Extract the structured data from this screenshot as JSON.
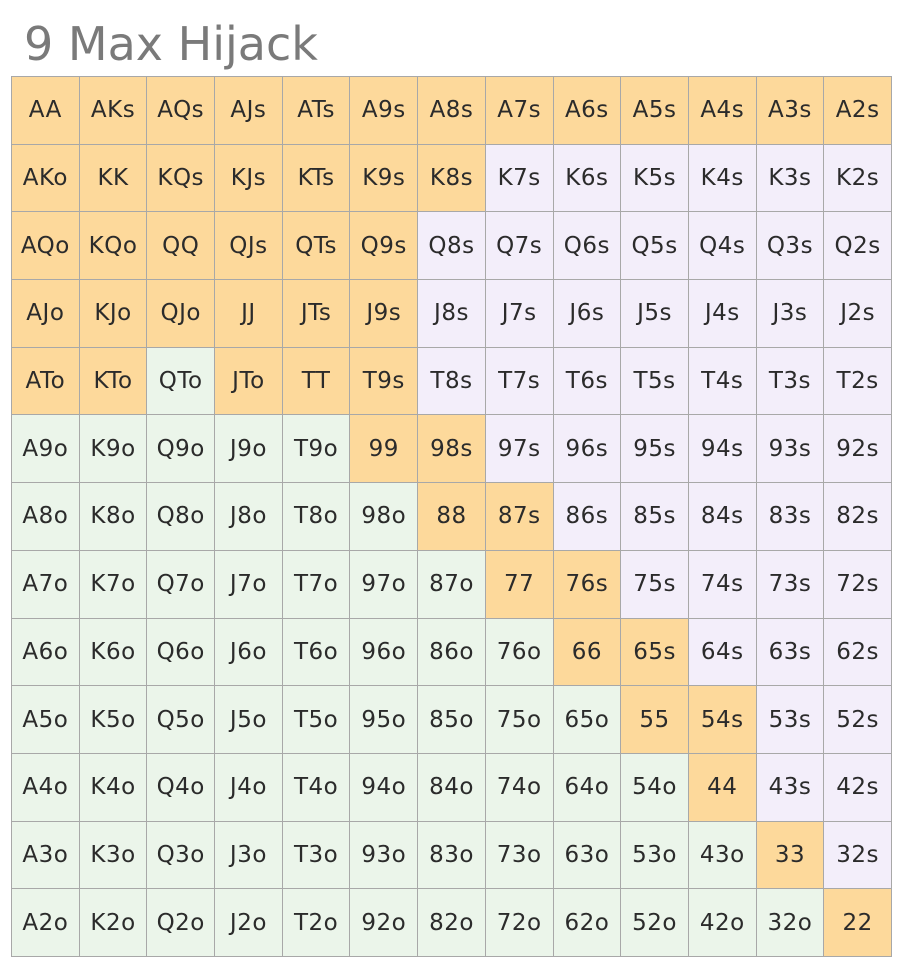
{
  "title": "9 Max Hijack",
  "colors": {
    "open": "#fdd99b",
    "suited_fold": "#f3eefa",
    "offsuit_fold": "#ebf5ea",
    "grid_line": "#a8a8a8",
    "title_text": "#7a7a7a"
  },
  "rows": [
    [
      {
        "label": "AA",
        "state": "open"
      },
      {
        "label": "AKs",
        "state": "open"
      },
      {
        "label": "AQs",
        "state": "open"
      },
      {
        "label": "AJs",
        "state": "open"
      },
      {
        "label": "ATs",
        "state": "open"
      },
      {
        "label": "A9s",
        "state": "open"
      },
      {
        "label": "A8s",
        "state": "open"
      },
      {
        "label": "A7s",
        "state": "open"
      },
      {
        "label": "A6s",
        "state": "open"
      },
      {
        "label": "A5s",
        "state": "open"
      },
      {
        "label": "A4s",
        "state": "open"
      },
      {
        "label": "A3s",
        "state": "open"
      },
      {
        "label": "A2s",
        "state": "open"
      }
    ],
    [
      {
        "label": "AKo",
        "state": "open"
      },
      {
        "label": "KK",
        "state": "open"
      },
      {
        "label": "KQs",
        "state": "open"
      },
      {
        "label": "KJs",
        "state": "open"
      },
      {
        "label": "KTs",
        "state": "open"
      },
      {
        "label": "K9s",
        "state": "open"
      },
      {
        "label": "K8s",
        "state": "open"
      },
      {
        "label": "K7s",
        "state": "suited"
      },
      {
        "label": "K6s",
        "state": "suited"
      },
      {
        "label": "K5s",
        "state": "suited"
      },
      {
        "label": "K4s",
        "state": "suited"
      },
      {
        "label": "K3s",
        "state": "suited"
      },
      {
        "label": "K2s",
        "state": "suited"
      }
    ],
    [
      {
        "label": "AQo",
        "state": "open"
      },
      {
        "label": "KQo",
        "state": "open"
      },
      {
        "label": "QQ",
        "state": "open"
      },
      {
        "label": "QJs",
        "state": "open"
      },
      {
        "label": "QTs",
        "state": "open"
      },
      {
        "label": "Q9s",
        "state": "open"
      },
      {
        "label": "Q8s",
        "state": "suited"
      },
      {
        "label": "Q7s",
        "state": "suited"
      },
      {
        "label": "Q6s",
        "state": "suited"
      },
      {
        "label": "Q5s",
        "state": "suited"
      },
      {
        "label": "Q4s",
        "state": "suited"
      },
      {
        "label": "Q3s",
        "state": "suited"
      },
      {
        "label": "Q2s",
        "state": "suited"
      }
    ],
    [
      {
        "label": "AJo",
        "state": "open"
      },
      {
        "label": "KJo",
        "state": "open"
      },
      {
        "label": "QJo",
        "state": "open"
      },
      {
        "label": "JJ",
        "state": "open"
      },
      {
        "label": "JTs",
        "state": "open"
      },
      {
        "label": "J9s",
        "state": "open"
      },
      {
        "label": "J8s",
        "state": "suited"
      },
      {
        "label": "J7s",
        "state": "suited"
      },
      {
        "label": "J6s",
        "state": "suited"
      },
      {
        "label": "J5s",
        "state": "suited"
      },
      {
        "label": "J4s",
        "state": "suited"
      },
      {
        "label": "J3s",
        "state": "suited"
      },
      {
        "label": "J2s",
        "state": "suited"
      }
    ],
    [
      {
        "label": "ATo",
        "state": "open"
      },
      {
        "label": "KTo",
        "state": "open"
      },
      {
        "label": "QTo",
        "state": "offsuit"
      },
      {
        "label": "JTo",
        "state": "open"
      },
      {
        "label": "TT",
        "state": "open"
      },
      {
        "label": "T9s",
        "state": "open"
      },
      {
        "label": "T8s",
        "state": "suited"
      },
      {
        "label": "T7s",
        "state": "suited"
      },
      {
        "label": "T6s",
        "state": "suited"
      },
      {
        "label": "T5s",
        "state": "suited"
      },
      {
        "label": "T4s",
        "state": "suited"
      },
      {
        "label": "T3s",
        "state": "suited"
      },
      {
        "label": "T2s",
        "state": "suited"
      }
    ],
    [
      {
        "label": "A9o",
        "state": "offsuit"
      },
      {
        "label": "K9o",
        "state": "offsuit"
      },
      {
        "label": "Q9o",
        "state": "offsuit"
      },
      {
        "label": "J9o",
        "state": "offsuit"
      },
      {
        "label": "T9o",
        "state": "offsuit"
      },
      {
        "label": "99",
        "state": "open"
      },
      {
        "label": "98s",
        "state": "open"
      },
      {
        "label": "97s",
        "state": "suited"
      },
      {
        "label": "96s",
        "state": "suited"
      },
      {
        "label": "95s",
        "state": "suited"
      },
      {
        "label": "94s",
        "state": "suited"
      },
      {
        "label": "93s",
        "state": "suited"
      },
      {
        "label": "92s",
        "state": "suited"
      }
    ],
    [
      {
        "label": "A8o",
        "state": "offsuit"
      },
      {
        "label": "K8o",
        "state": "offsuit"
      },
      {
        "label": "Q8o",
        "state": "offsuit"
      },
      {
        "label": "J8o",
        "state": "offsuit"
      },
      {
        "label": "T8o",
        "state": "offsuit"
      },
      {
        "label": "98o",
        "state": "offsuit"
      },
      {
        "label": "88",
        "state": "open"
      },
      {
        "label": "87s",
        "state": "open"
      },
      {
        "label": "86s",
        "state": "suited"
      },
      {
        "label": "85s",
        "state": "suited"
      },
      {
        "label": "84s",
        "state": "suited"
      },
      {
        "label": "83s",
        "state": "suited"
      },
      {
        "label": "82s",
        "state": "suited"
      }
    ],
    [
      {
        "label": "A7o",
        "state": "offsuit"
      },
      {
        "label": "K7o",
        "state": "offsuit"
      },
      {
        "label": "Q7o",
        "state": "offsuit"
      },
      {
        "label": "J7o",
        "state": "offsuit"
      },
      {
        "label": "T7o",
        "state": "offsuit"
      },
      {
        "label": "97o",
        "state": "offsuit"
      },
      {
        "label": "87o",
        "state": "offsuit"
      },
      {
        "label": "77",
        "state": "open"
      },
      {
        "label": "76s",
        "state": "open"
      },
      {
        "label": "75s",
        "state": "suited"
      },
      {
        "label": "74s",
        "state": "suited"
      },
      {
        "label": "73s",
        "state": "suited"
      },
      {
        "label": "72s",
        "state": "suited"
      }
    ],
    [
      {
        "label": "A6o",
        "state": "offsuit"
      },
      {
        "label": "K6o",
        "state": "offsuit"
      },
      {
        "label": "Q6o",
        "state": "offsuit"
      },
      {
        "label": "J6o",
        "state": "offsuit"
      },
      {
        "label": "T6o",
        "state": "offsuit"
      },
      {
        "label": "96o",
        "state": "offsuit"
      },
      {
        "label": "86o",
        "state": "offsuit"
      },
      {
        "label": "76o",
        "state": "offsuit"
      },
      {
        "label": "66",
        "state": "open"
      },
      {
        "label": "65s",
        "state": "open"
      },
      {
        "label": "64s",
        "state": "suited"
      },
      {
        "label": "63s",
        "state": "suited"
      },
      {
        "label": "62s",
        "state": "suited"
      }
    ],
    [
      {
        "label": "A5o",
        "state": "offsuit"
      },
      {
        "label": "K5o",
        "state": "offsuit"
      },
      {
        "label": "Q5o",
        "state": "offsuit"
      },
      {
        "label": "J5o",
        "state": "offsuit"
      },
      {
        "label": "T5o",
        "state": "offsuit"
      },
      {
        "label": "95o",
        "state": "offsuit"
      },
      {
        "label": "85o",
        "state": "offsuit"
      },
      {
        "label": "75o",
        "state": "offsuit"
      },
      {
        "label": "65o",
        "state": "offsuit"
      },
      {
        "label": "55",
        "state": "open"
      },
      {
        "label": "54s",
        "state": "open"
      },
      {
        "label": "53s",
        "state": "suited"
      },
      {
        "label": "52s",
        "state": "suited"
      }
    ],
    [
      {
        "label": "A4o",
        "state": "offsuit"
      },
      {
        "label": "K4o",
        "state": "offsuit"
      },
      {
        "label": "Q4o",
        "state": "offsuit"
      },
      {
        "label": "J4o",
        "state": "offsuit"
      },
      {
        "label": "T4o",
        "state": "offsuit"
      },
      {
        "label": "94o",
        "state": "offsuit"
      },
      {
        "label": "84o",
        "state": "offsuit"
      },
      {
        "label": "74o",
        "state": "offsuit"
      },
      {
        "label": "64o",
        "state": "offsuit"
      },
      {
        "label": "54o",
        "state": "offsuit"
      },
      {
        "label": "44",
        "state": "open"
      },
      {
        "label": "43s",
        "state": "suited"
      },
      {
        "label": "42s",
        "state": "suited"
      }
    ],
    [
      {
        "label": "A3o",
        "state": "offsuit"
      },
      {
        "label": "K3o",
        "state": "offsuit"
      },
      {
        "label": "Q3o",
        "state": "offsuit"
      },
      {
        "label": "J3o",
        "state": "offsuit"
      },
      {
        "label": "T3o",
        "state": "offsuit"
      },
      {
        "label": "93o",
        "state": "offsuit"
      },
      {
        "label": "83o",
        "state": "offsuit"
      },
      {
        "label": "73o",
        "state": "offsuit"
      },
      {
        "label": "63o",
        "state": "offsuit"
      },
      {
        "label": "53o",
        "state": "offsuit"
      },
      {
        "label": "43o",
        "state": "offsuit"
      },
      {
        "label": "33",
        "state": "open"
      },
      {
        "label": "32s",
        "state": "suited"
      }
    ],
    [
      {
        "label": "A2o",
        "state": "offsuit"
      },
      {
        "label": "K2o",
        "state": "offsuit"
      },
      {
        "label": "Q2o",
        "state": "offsuit"
      },
      {
        "label": "J2o",
        "state": "offsuit"
      },
      {
        "label": "T2o",
        "state": "offsuit"
      },
      {
        "label": "92o",
        "state": "offsuit"
      },
      {
        "label": "82o",
        "state": "offsuit"
      },
      {
        "label": "72o",
        "state": "offsuit"
      },
      {
        "label": "62o",
        "state": "offsuit"
      },
      {
        "label": "52o",
        "state": "offsuit"
      },
      {
        "label": "42o",
        "state": "offsuit"
      },
      {
        "label": "32o",
        "state": "offsuit"
      },
      {
        "label": "22",
        "state": "open"
      }
    ]
  ]
}
